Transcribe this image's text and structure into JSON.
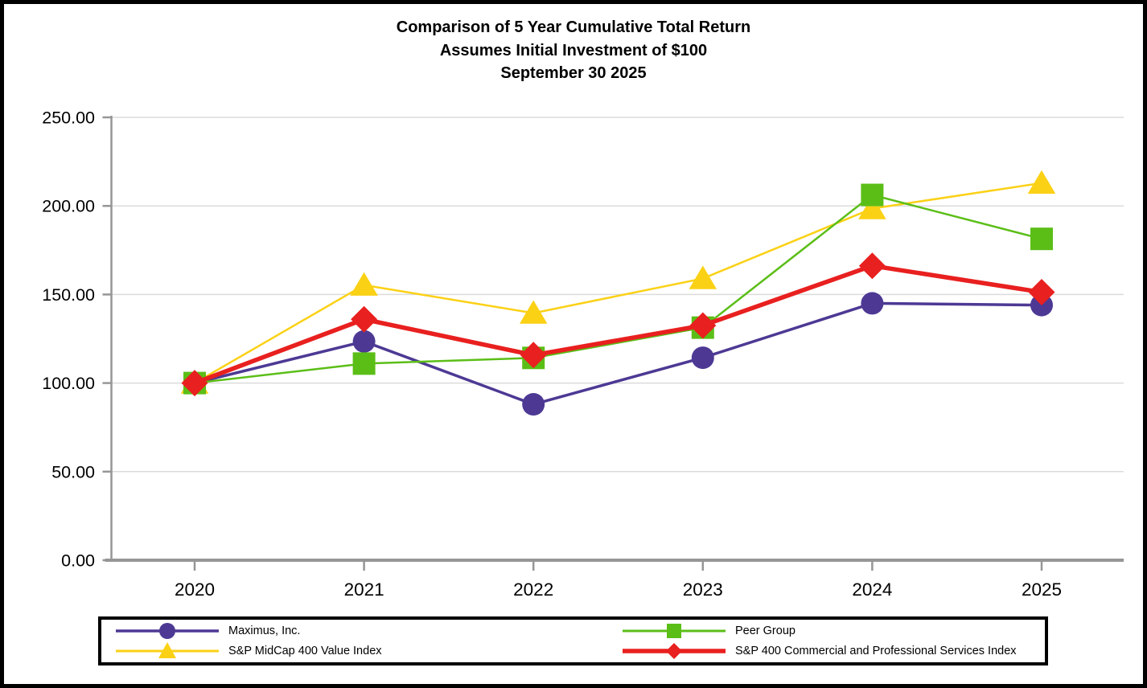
{
  "figure": {
    "title_lines": [
      "Comparison of 5 Year Cumulative Total Return",
      "Assumes Initial Investment of $100",
      "September 30 2025"
    ]
  },
  "chart_data": {
    "type": "line",
    "x": [
      2020,
      2021,
      2022,
      2023,
      2024,
      2025
    ],
    "xtick_labels": [
      "2020",
      "2021",
      "2022",
      "2023",
      "2024",
      "2025"
    ],
    "ytick_labels": [
      "0.00",
      "50.00",
      "100.00",
      "150.00",
      "200.00",
      "250.00"
    ],
    "ylim": [
      0,
      250
    ],
    "ytick_step": 50,
    "grid": "horizontal",
    "grid_color": "#DBDBDB",
    "axis_color": "#969696",
    "legend_position": "bottom-box",
    "series": [
      {
        "name": "Maximus, Inc.",
        "marker": "circle",
        "color": "#4D3994",
        "line_width": 3.5,
        "values": [
          100.0,
          123.5,
          88.0,
          114.3,
          145.0,
          144.0
        ]
      },
      {
        "name": "Peer Group",
        "marker": "square",
        "color": "#5BBE17",
        "line_width": 2.5,
        "values": [
          100.0,
          111.0,
          114.2,
          131.3,
          206.2,
          181.4
        ]
      },
      {
        "name": "S&P MidCap 400 Value Index",
        "marker": "triangle",
        "color": "#FBD116",
        "line_width": 2.5,
        "values": [
          100.0,
          155.3,
          139.5,
          159.0,
          198.5,
          212.9
        ]
      },
      {
        "name": "S&P 400 Commercial and Professional Services Index",
        "marker": "diamond",
        "color": "#E8201F",
        "line_width": 5.5,
        "values": [
          100.0,
          136.0,
          115.8,
          132.5,
          166.2,
          151.3
        ]
      }
    ]
  }
}
